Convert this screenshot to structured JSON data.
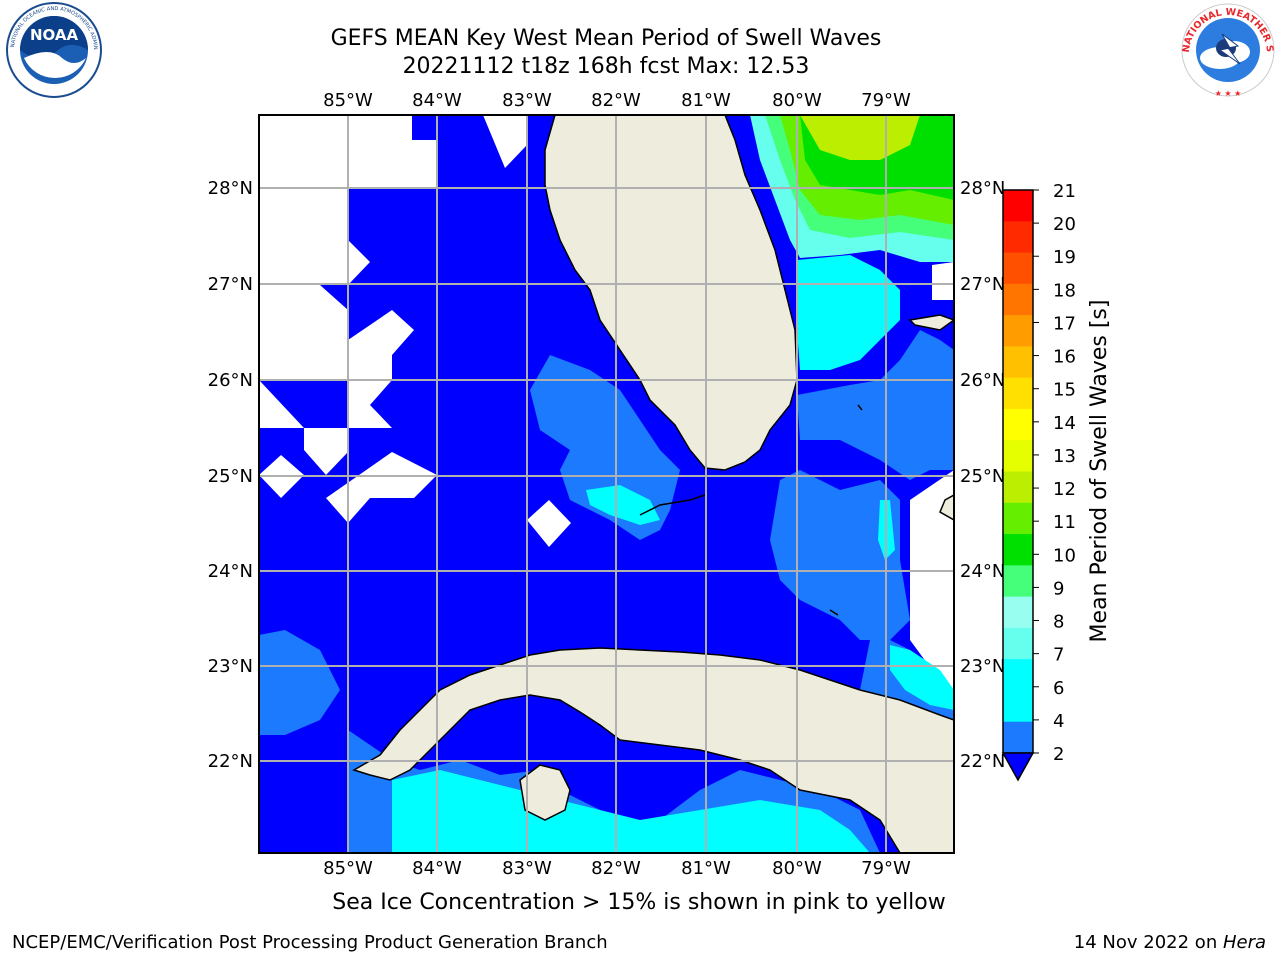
{
  "header": {
    "title_line1": "GEFS MEAN Key West Mean Period of Swell Waves",
    "title_line2": "20221112 t18z 168h fcst   Max: 12.53"
  },
  "logos": {
    "left": {
      "icon": "noaa-logo",
      "text": "NOAA",
      "ring_text": "NATIONAL OCEANIC AND ATMOSPHERIC ADMINISTRATION · U.S. DEPARTMENT OF COMMERCE"
    },
    "right": {
      "icon": "nws-logo",
      "ring_text": "NATIONAL WEATHER SERVICE"
    }
  },
  "map": {
    "lon_labels": [
      "85°W",
      "84°W",
      "83°W",
      "82°W",
      "81°W",
      "80°W",
      "79°W"
    ],
    "lat_labels": [
      "28°N",
      "27°N",
      "26°N",
      "25°N",
      "24°N",
      "23°N",
      "22°N"
    ],
    "lon_range": [
      -86.0,
      -78.3
    ],
    "lat_range": [
      21.0,
      28.75
    ],
    "colors": {
      "ocean_2_4": "#0000ff",
      "ocean_4_6": "#1c7aff",
      "ocean_6_8": "#00ffff",
      "ocean_8_9": "#66ffee",
      "ocean_9_10": "#45ff7a",
      "ocean_10_11": "#00e000",
      "ocean_11_12": "#66ee00",
      "ocean_12_13": "#bbee00",
      "land": "#eeeddd",
      "grid": "#b0b0b0"
    }
  },
  "colorbar": {
    "label": "Mean Period of Swell Waves [s]",
    "ticks": [
      "21",
      "20",
      "19",
      "18",
      "17",
      "16",
      "15",
      "14",
      "13",
      "12",
      "11",
      "10",
      "9",
      "8",
      "7",
      "6",
      "4",
      "2"
    ],
    "colors": [
      "#ff0000",
      "#ff2a00",
      "#ff5000",
      "#ff7500",
      "#ff9c00",
      "#ffc000",
      "#ffe000",
      "#ffff00",
      "#e6ff00",
      "#bbee00",
      "#66ee00",
      "#00e000",
      "#45ff7a",
      "#98fff0",
      "#66ffee",
      "#00ffff",
      "#00ffff",
      "#1c7aff"
    ],
    "extend_color": "#0000ff"
  },
  "footer": {
    "caption": "Sea Ice Concentration > 15% is shown in pink to yellow",
    "left": "NCEP/EMC/Verification Post Processing Product Generation Branch",
    "right_date": "14 Nov 2022 on ",
    "right_machine": "Hera"
  }
}
